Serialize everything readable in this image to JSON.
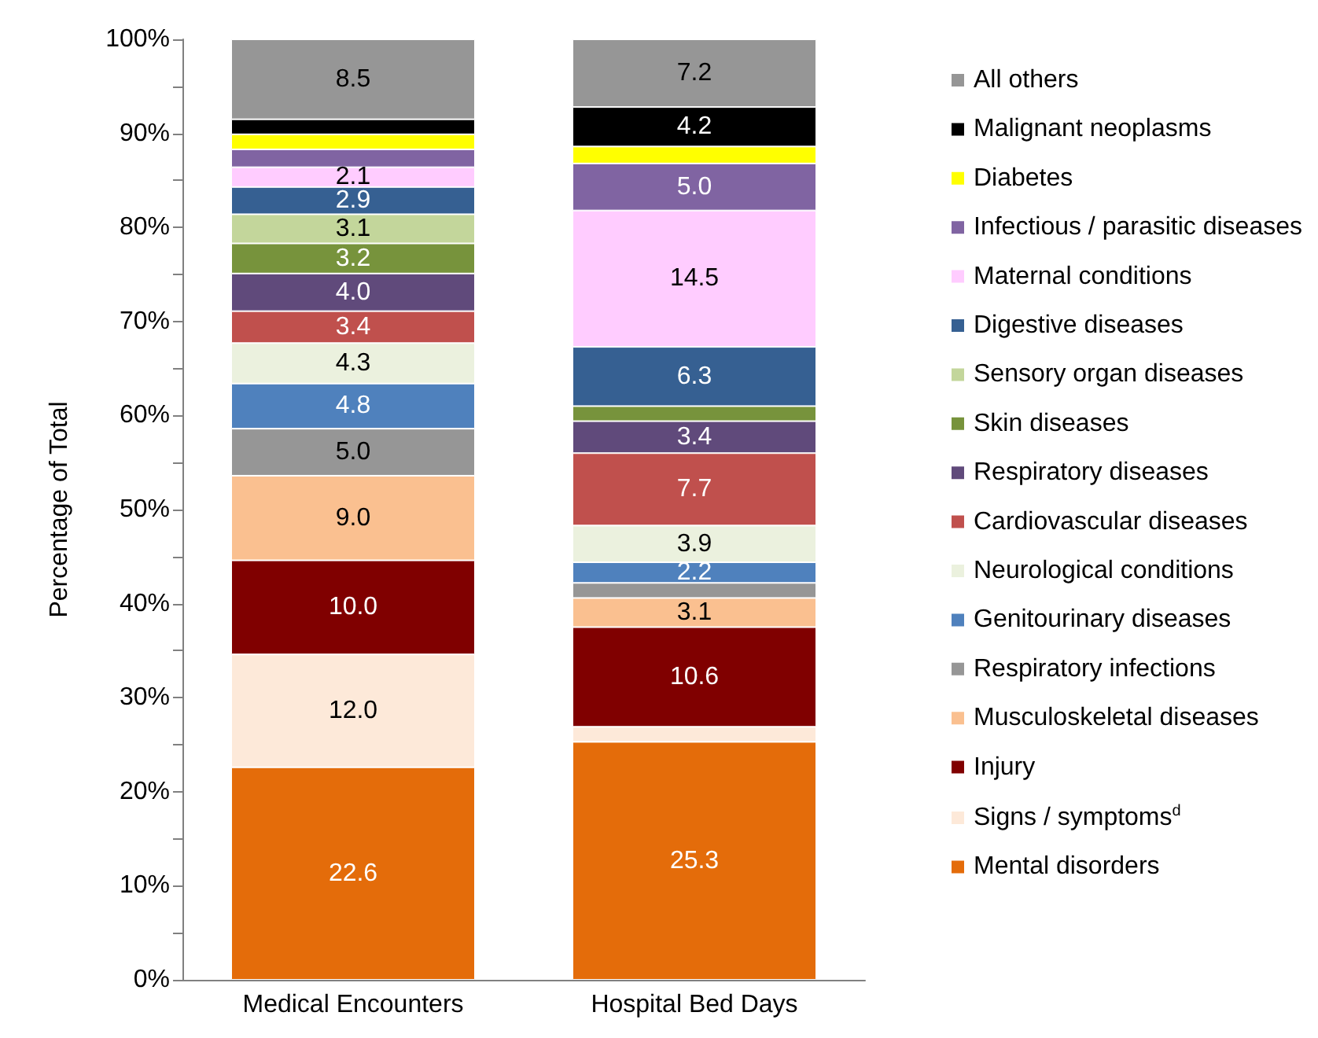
{
  "chart_data": {
    "type": "bar",
    "stacked": true,
    "ylabel": "Percentage of Total",
    "categories": [
      "Medical Encounters",
      "Hospital Bed Days"
    ],
    "series": [
      {
        "name": "Mental disorders",
        "color": "#e46c0a",
        "values": [
          22.6,
          25.3
        ],
        "value_labels": [
          "22.6",
          "25.3"
        ]
      },
      {
        "name": "Signs / symptoms$^{d}$",
        "color": "#fde9d9",
        "values": [
          12.0,
          1.6
        ],
        "value_labels": [
          "12.0",
          null
        ]
      },
      {
        "name": "Injury",
        "color": "#800000",
        "values": [
          10.0,
          10.6
        ],
        "value_labels": [
          "10.0",
          "10.6"
        ]
      },
      {
        "name": "Musculoskeletal diseases",
        "color": "#fac090",
        "values": [
          9.0,
          3.1
        ],
        "value_labels": [
          "9.0",
          "3.1"
        ]
      },
      {
        "name": "Respiratory infections",
        "color": "#969696",
        "values": [
          5.0,
          1.6
        ],
        "value_labels": [
          "5.0",
          null
        ]
      },
      {
        "name": "Genitourinary diseases",
        "color": "#4f81bd",
        "values": [
          4.8,
          2.2
        ],
        "value_labels": [
          "4.8",
          "2.2"
        ]
      },
      {
        "name": "Neurological conditions",
        "color": "#ebf1de",
        "values": [
          4.3,
          3.9
        ],
        "value_labels": [
          "4.3",
          "3.9"
        ]
      },
      {
        "name": "Cardiovascular diseases",
        "color": "#c0504d",
        "values": [
          3.4,
          7.7
        ],
        "value_labels": [
          "3.4",
          "7.7"
        ]
      },
      {
        "name": "Respiratory diseases",
        "color": "#604a7b",
        "values": [
          4.0,
          3.4
        ],
        "value_labels": [
          "4.0",
          "3.4"
        ]
      },
      {
        "name": "Skin diseases",
        "color": "#77933c",
        "values": [
          3.2,
          1.6
        ],
        "value_labels": [
          "3.2",
          null
        ]
      },
      {
        "name": "Sensory organ diseases",
        "color": "#c3d69b",
        "values": [
          3.1,
          0
        ],
        "value_labels": [
          "3.1",
          null
        ]
      },
      {
        "name": "Digestive diseases",
        "color": "#366092",
        "values": [
          2.9,
          6.3
        ],
        "value_labels": [
          "2.9",
          "6.3"
        ]
      },
      {
        "name": "Maternal conditions",
        "color": "#ffccff",
        "values": [
          2.1,
          14.5
        ],
        "value_labels": [
          "2.1",
          "14.5"
        ]
      },
      {
        "name": "Infectious / parasitic diseases",
        "color": "#8064a2",
        "values": [
          1.9,
          5.0
        ],
        "value_labels": [
          null,
          "5.0"
        ]
      },
      {
        "name": "Diabetes",
        "color": "#ffff00",
        "values": [
          1.6,
          1.8
        ],
        "value_labels": [
          null,
          null
        ]
      },
      {
        "name": "Malignant neoplasms",
        "color": "#000000",
        "values": [
          1.6,
          4.2
        ],
        "value_labels": [
          null,
          "4.2"
        ]
      },
      {
        "name": "All others",
        "color": "#969696",
        "values": [
          8.5,
          7.2
        ],
        "value_labels": [
          "8.5",
          "7.2"
        ]
      }
    ],
    "ylim": [
      0,
      100
    ],
    "yticks": [
      {
        "value": 0,
        "label": "0%"
      },
      {
        "value": 5,
        "label": null
      },
      {
        "value": 10,
        "label": "10%"
      },
      {
        "value": 15,
        "label": null
      },
      {
        "value": 20,
        "label": "20%"
      },
      {
        "value": 25,
        "label": null
      },
      {
        "value": 30,
        "label": "30%"
      },
      {
        "value": 35,
        "label": null
      },
      {
        "value": 40,
        "label": "40%"
      },
      {
        "value": 45,
        "label": null
      },
      {
        "value": 50,
        "label": "50%"
      },
      {
        "value": 55,
        "label": null
      },
      {
        "value": 60,
        "label": "60%"
      },
      {
        "value": 65,
        "label": null
      },
      {
        "value": 70,
        "label": "70%"
      },
      {
        "value": 75,
        "label": null
      },
      {
        "value": 80,
        "label": "80%"
      },
      {
        "value": 85,
        "label": null
      },
      {
        "value": 90,
        "label": "90%"
      },
      {
        "value": 95,
        "label": null
      },
      {
        "value": 100,
        "label": "100%"
      }
    ],
    "grid": false,
    "legend": "right"
  }
}
